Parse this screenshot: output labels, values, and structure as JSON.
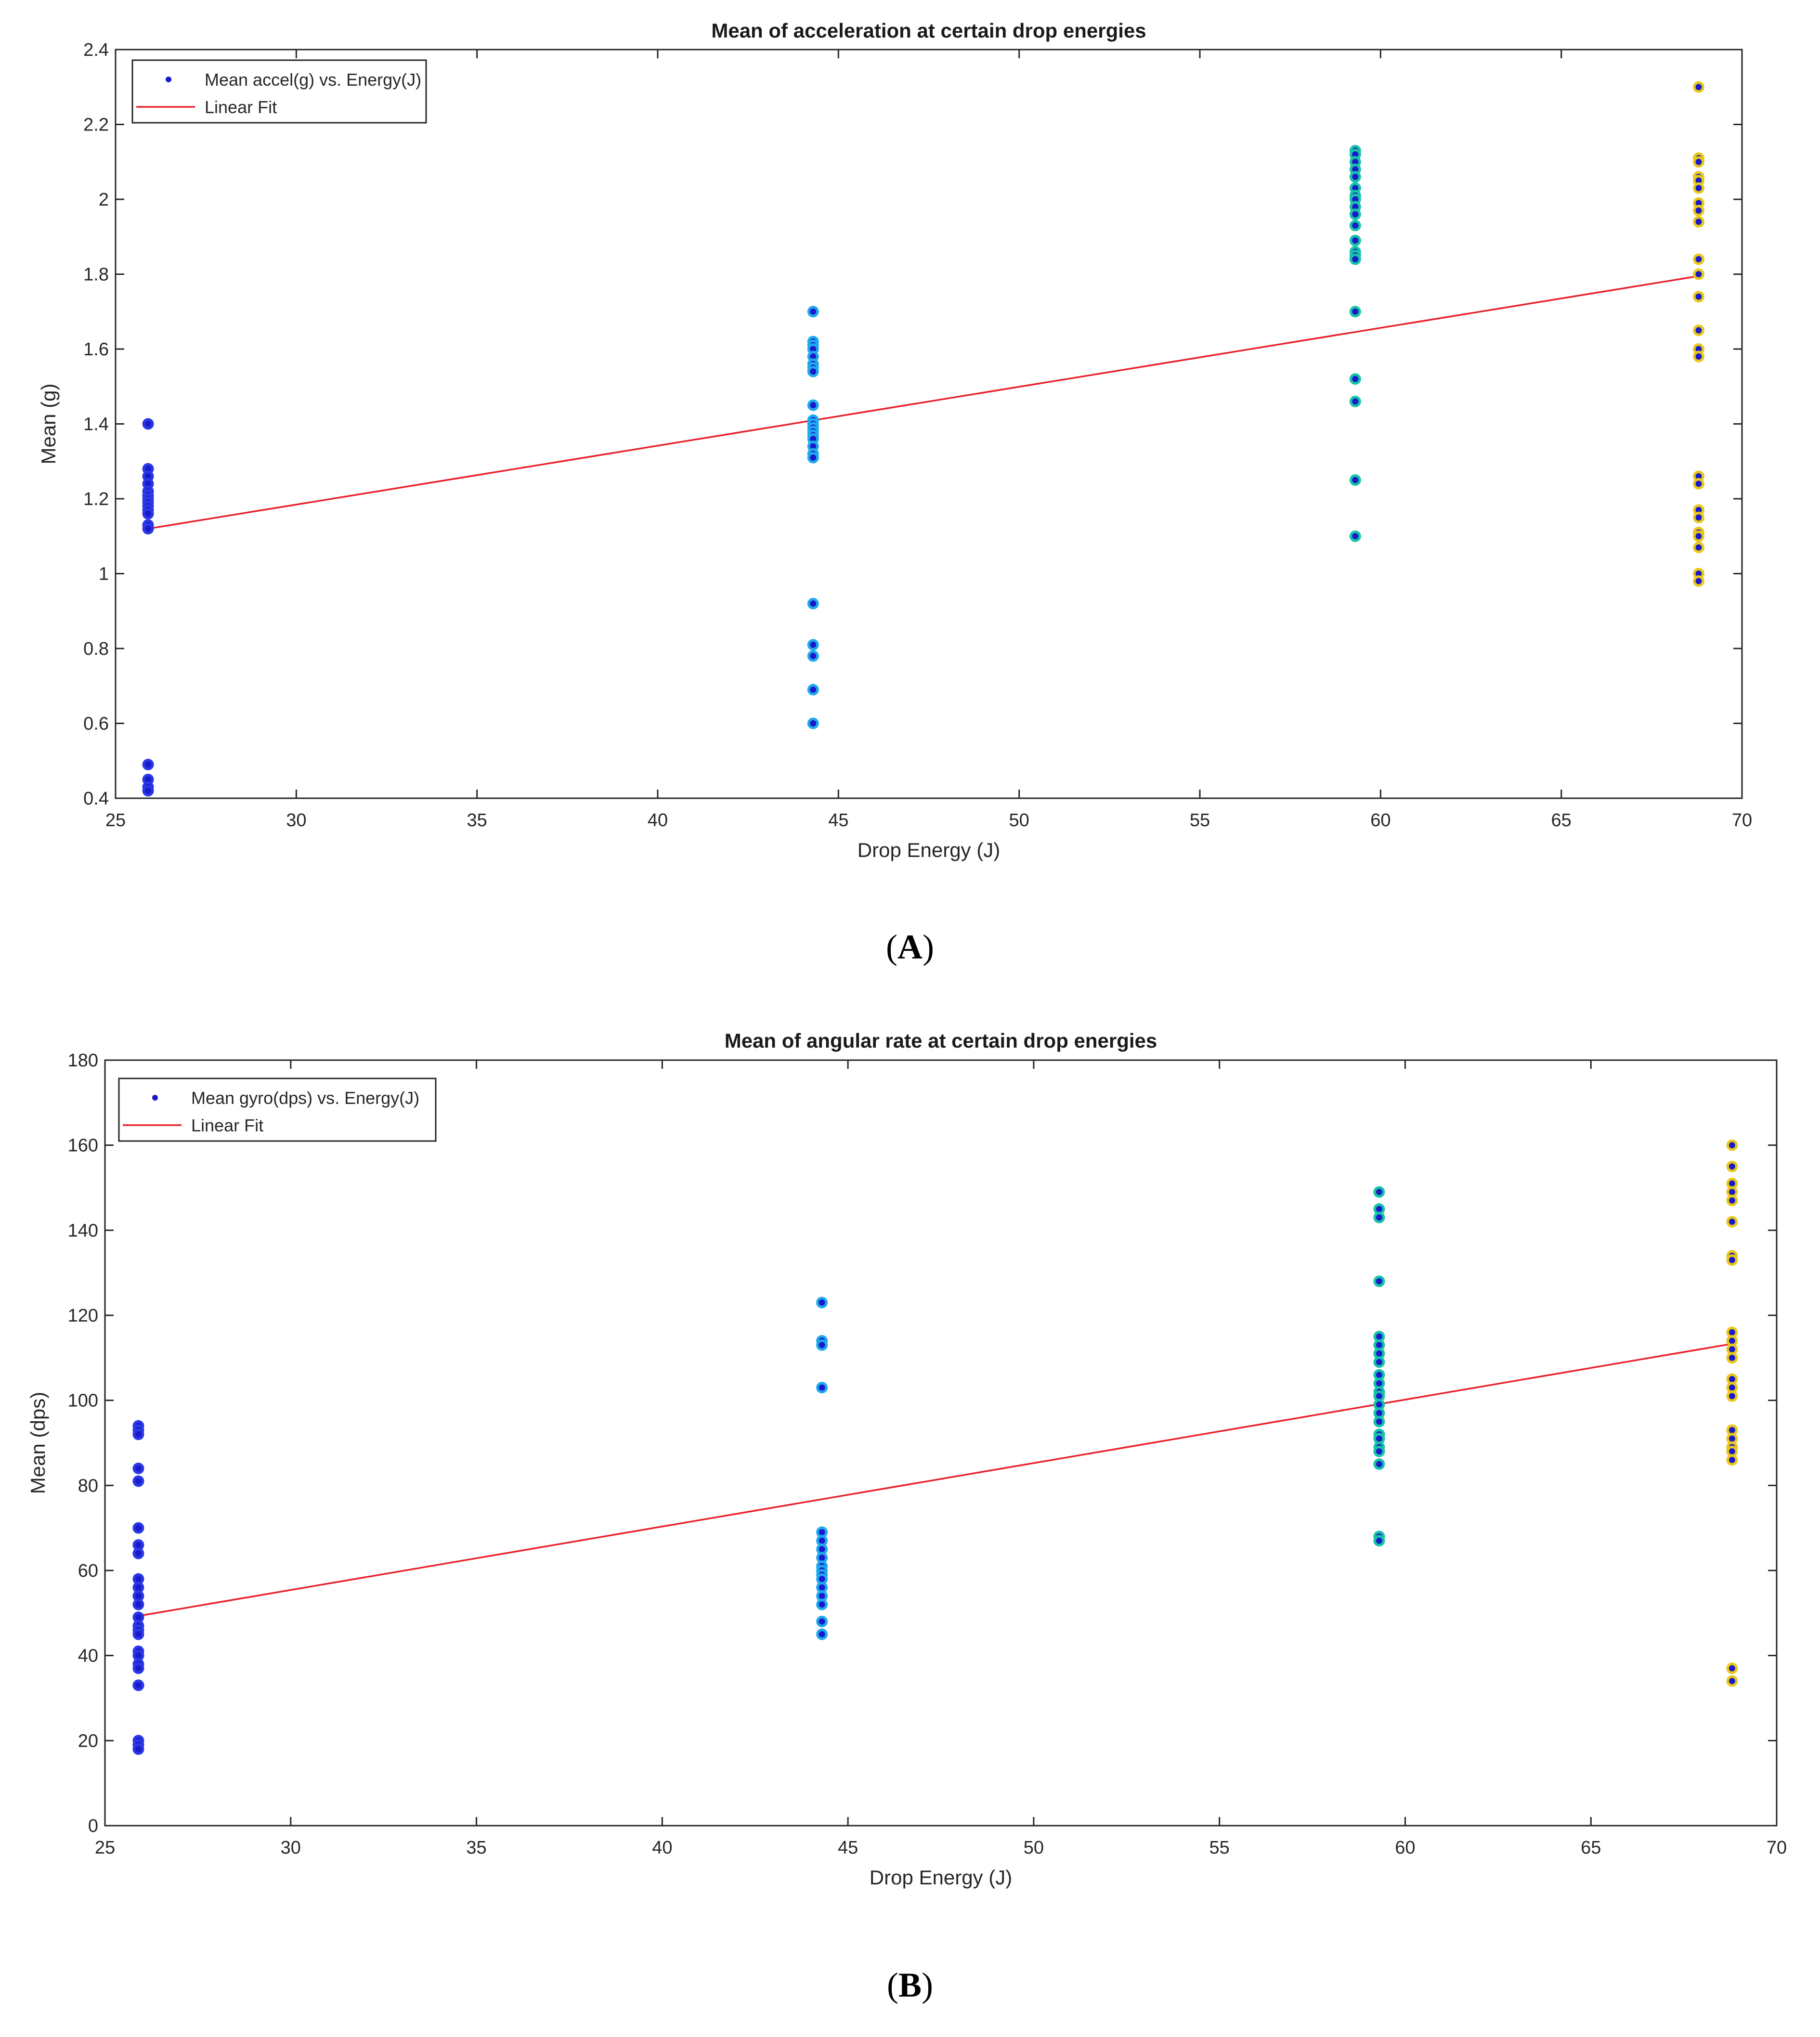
{
  "chart_data": [
    {
      "type": "scatter",
      "panel": "A",
      "title": "Mean of acceleration at certain drop energies",
      "xlabel": "Drop Energy (J)",
      "ylabel": "Mean (g)",
      "xlim": [
        25,
        70
      ],
      "ylim": [
        0.4,
        2.4
      ],
      "xticks": [
        25,
        30,
        35,
        40,
        45,
        50,
        55,
        60,
        65,
        70
      ],
      "yticks": [
        0.4,
        0.6,
        0.8,
        1,
        1.2,
        1.4,
        1.6,
        1.8,
        2,
        2.2,
        2.4
      ],
      "legend_position": "top-left",
      "series": [
        {
          "name": "Mean accel(g) vs. Energy(J)",
          "kind": "points",
          "groups": [
            {
              "x": 25.9,
              "color": "#2a38e6",
              "values": [
                1.4,
                1.28,
                1.26,
                1.24,
                1.22,
                1.21,
                1.2,
                1.19,
                1.18,
                1.17,
                1.16,
                1.13,
                1.12,
                0.49,
                0.45,
                0.43,
                0.42
              ]
            },
            {
              "x": 44.3,
              "color": "#1fa8ee",
              "values": [
                1.7,
                1.62,
                1.61,
                1.6,
                1.58,
                1.56,
                1.55,
                1.54,
                1.45,
                1.41,
                1.4,
                1.39,
                1.38,
                1.37,
                1.36,
                1.34,
                1.32,
                1.31,
                0.92,
                0.81,
                0.78,
                0.69,
                0.6
              ]
            },
            {
              "x": 59.3,
              "color": "#18c2a8",
              "values": [
                2.13,
                2.12,
                2.1,
                2.08,
                2.06,
                2.03,
                2.01,
                2.0,
                1.98,
                1.96,
                1.93,
                1.89,
                1.86,
                1.85,
                1.84,
                1.7,
                1.52,
                1.46,
                1.25,
                1.1
              ]
            },
            {
              "x": 68.8,
              "color": "#e8c81c",
              "values": [
                2.3,
                2.11,
                2.1,
                2.06,
                2.05,
                2.03,
                1.99,
                1.97,
                1.94,
                1.84,
                1.8,
                1.74,
                1.65,
                1.6,
                1.58,
                1.26,
                1.24,
                1.17,
                1.15,
                1.11,
                1.1,
                1.07,
                1.0,
                0.98
              ]
            }
          ]
        },
        {
          "name": "Linear Fit",
          "kind": "line",
          "color": "#e8202a",
          "x": [
            25.9,
            68.8
          ],
          "y": [
            1.12,
            1.795
          ]
        }
      ]
    },
    {
      "type": "scatter",
      "panel": "B",
      "title": "Mean of angular rate at certain drop energies",
      "xlabel": "Drop Energy (J)",
      "ylabel": "Mean (dps)",
      "xlim": [
        25,
        70
      ],
      "ylim": [
        0,
        180
      ],
      "xticks": [
        25,
        30,
        35,
        40,
        45,
        50,
        55,
        60,
        65,
        70
      ],
      "yticks": [
        0,
        20,
        40,
        60,
        80,
        100,
        120,
        140,
        160,
        180
      ],
      "legend_position": "top-left",
      "series": [
        {
          "name": "Mean gyro(dps) vs. Energy(J)",
          "kind": "points",
          "groups": [
            {
              "x": 25.9,
              "color": "#2a38e6",
              "values": [
                94,
                93,
                92,
                84,
                81,
                70,
                66,
                64,
                58,
                56,
                54,
                52,
                49,
                47,
                46,
                45,
                41,
                40,
                38,
                37,
                33,
                33,
                20,
                19,
                18
              ]
            },
            {
              "x": 44.3,
              "color": "#1fa8ee",
              "values": [
                123,
                114,
                113,
                103,
                69,
                67,
                65,
                63,
                61,
                60,
                59,
                58,
                56,
                54,
                52,
                48,
                45
              ]
            },
            {
              "x": 59.3,
              "color": "#18c2a8",
              "values": [
                149,
                145,
                143,
                128,
                115,
                113,
                111,
                109,
                106,
                104,
                102,
                101,
                99,
                97,
                95,
                92,
                91,
                89,
                88,
                85,
                68,
                67
              ]
            },
            {
              "x": 68.8,
              "color": "#e8c81c",
              "values": [
                160,
                155,
                151,
                149,
                147,
                142,
                134,
                133,
                116,
                114,
                112,
                110,
                105,
                103,
                101,
                93,
                91,
                89,
                88,
                86,
                37,
                34
              ]
            }
          ]
        },
        {
          "name": "Linear Fit",
          "kind": "line",
          "color": "#e8202a",
          "x": [
            25.9,
            68.8
          ],
          "y": [
            49.3,
            113.3
          ]
        }
      ]
    }
  ],
  "panel_labels": [
    "A",
    "B"
  ],
  "colors": {
    "marker_fill": "#1a1acb",
    "axis": "#262626",
    "text": "#262626"
  }
}
